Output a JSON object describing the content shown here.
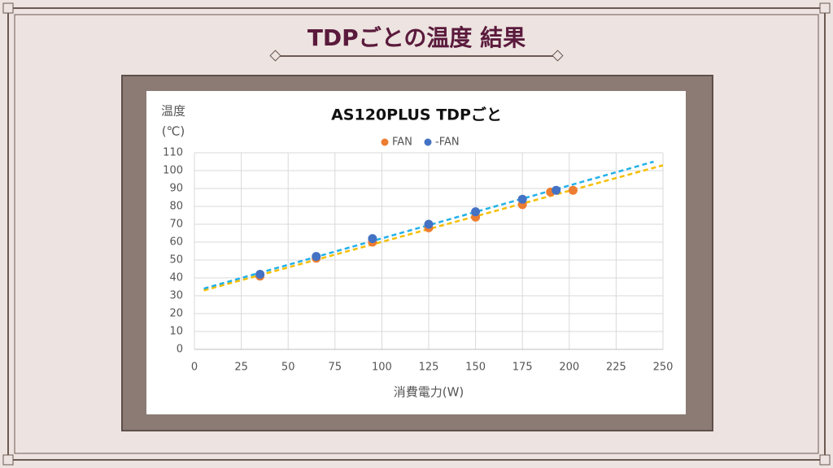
{
  "slide_title": "TDPごとの温度 結果",
  "chart_data": {
    "type": "scatter",
    "title": "AS120PLUS TDPごと",
    "x_label": "消費電力(W)",
    "y_label": [
      "温度",
      "(℃)"
    ],
    "xlim": [
      0,
      250
    ],
    "xticks": [
      0,
      25,
      50,
      75,
      100,
      125,
      150,
      175,
      200,
      225,
      250
    ],
    "ylim": [
      0,
      110
    ],
    "yticks": [
      0,
      10,
      20,
      30,
      40,
      50,
      60,
      70,
      80,
      90,
      100,
      110
    ],
    "grid": true,
    "legend": "top",
    "series": [
      {
        "name": "FAN",
        "color": "#ed7d31",
        "x": [
          35,
          65,
          95,
          125,
          150,
          175,
          190,
          202
        ],
        "values": [
          41,
          51,
          60,
          68,
          74,
          81,
          88,
          89
        ]
      },
      {
        "name": "-FAN",
        "color": "#4472c4",
        "x": [
          35,
          65,
          95,
          125,
          150,
          175,
          193
        ],
        "values": [
          42,
          52,
          62,
          70,
          77,
          84,
          89
        ]
      }
    ],
    "trendlines": [
      {
        "color": "#f5be00",
        "x": [
          5,
          250
        ],
        "values": [
          33,
          103
        ]
      },
      {
        "color": "#22b0e8",
        "x": [
          5,
          245
        ],
        "values": [
          34,
          105
        ]
      }
    ]
  }
}
